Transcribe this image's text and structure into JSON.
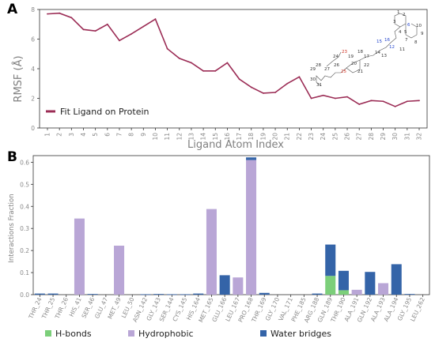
{
  "panel_labels": {
    "a": "A",
    "b": "B"
  },
  "colors": {
    "rmsf_line": "#9b2c55",
    "hbonds": "#7ccf7a",
    "hydrophobic": "#b9a6d6",
    "water_bridges": "#3464a8",
    "axis": "#333333"
  },
  "chart_data": [
    {
      "type": "line",
      "ylabel": "RMSF (Å)",
      "xlabel": "Ligand Atom Index",
      "ylim": [
        0,
        8
      ],
      "yticks": [
        0,
        2,
        4,
        6,
        8
      ],
      "x": [
        1,
        2,
        3,
        4,
        5,
        6,
        7,
        8,
        9,
        10,
        11,
        12,
        13,
        14,
        15,
        16,
        17,
        18,
        19,
        20,
        21,
        22,
        23,
        24,
        25,
        26,
        27,
        28,
        29,
        30,
        31,
        32
      ],
      "series": [
        {
          "name": "Fit Ligand on Protein",
          "values": [
            7.7,
            7.75,
            7.45,
            6.65,
            6.55,
            7.0,
            5.9,
            6.35,
            6.85,
            7.35,
            5.35,
            4.7,
            4.4,
            3.85,
            3.85,
            4.4,
            3.3,
            2.75,
            2.35,
            2.4,
            3.0,
            3.45,
            2.0,
            2.2,
            2.0,
            2.1,
            1.6,
            1.85,
            1.8,
            1.45,
            1.8,
            1.85
          ]
        }
      ],
      "legend": "center-right",
      "grid": false,
      "molecule_atom_labels": {
        "black": [
          "1",
          "2",
          "3",
          "4",
          "5",
          "7",
          "8",
          "9",
          "10",
          "11",
          "13",
          "14",
          "17",
          "18",
          "19",
          "20",
          "21",
          "22",
          "24",
          "26",
          "27",
          "28",
          "29",
          "30",
          "31"
        ],
        "red": [
          "23",
          "25"
        ],
        "blue": [
          "6",
          "12",
          "15",
          "16"
        ]
      }
    },
    {
      "type": "bar",
      "stacked": true,
      "ylabel": "Interactions Fraction",
      "ylim": [
        0,
        0.63
      ],
      "yticks": [
        0.0,
        0.1,
        0.2,
        0.3,
        0.4,
        0.5,
        0.6
      ],
      "categories": [
        "THR_24",
        "THR_25",
        "THR_26",
        "HIS_41",
        "SER_46",
        "GLU_47",
        "MET_49",
        "LEU_50",
        "ASN_142",
        "GLY_143",
        "SER_144",
        "CYS_145",
        "HIS_164",
        "MET_165",
        "GLU_166",
        "LEU_167",
        "PRO_168",
        "THR_169",
        "GLY_170",
        "VAL_171",
        "PHE_185",
        "ARG_188",
        "GLN_189",
        "THR_190",
        "ALA_191",
        "GLN_192",
        "ALA_193",
        "ALA_194",
        "GLY_195",
        "LEU_262"
      ],
      "series": [
        {
          "name": "H-bonds",
          "values": [
            0,
            0,
            0,
            0,
            0,
            0,
            0,
            0,
            0,
            0,
            0,
            0,
            0,
            0,
            0,
            0,
            0,
            0,
            0,
            0,
            0,
            0,
            0.085,
            0.02,
            0,
            0,
            0,
            0,
            0,
            0
          ]
        },
        {
          "name": "Hydrophobic",
          "values": [
            0,
            0,
            0,
            0.345,
            0,
            0,
            0.222,
            0,
            0,
            0,
            0,
            0,
            0,
            0.388,
            0,
            0.078,
            0.61,
            0,
            0,
            0,
            0,
            0,
            0,
            0,
            0.022,
            0,
            0.052,
            0,
            0,
            0
          ]
        },
        {
          "name": "Water bridges",
          "values": [
            0.005,
            0.005,
            0,
            0,
            0.003,
            0,
            0,
            0,
            0.002,
            0.003,
            0.002,
            0.002,
            0.005,
            0,
            0.088,
            0,
            0.012,
            0.008,
            0,
            0,
            0,
            0.005,
            0.142,
            0.088,
            0,
            0.103,
            0,
            0.138,
            0.003,
            0
          ]
        }
      ],
      "legend": "bottom"
    }
  ]
}
